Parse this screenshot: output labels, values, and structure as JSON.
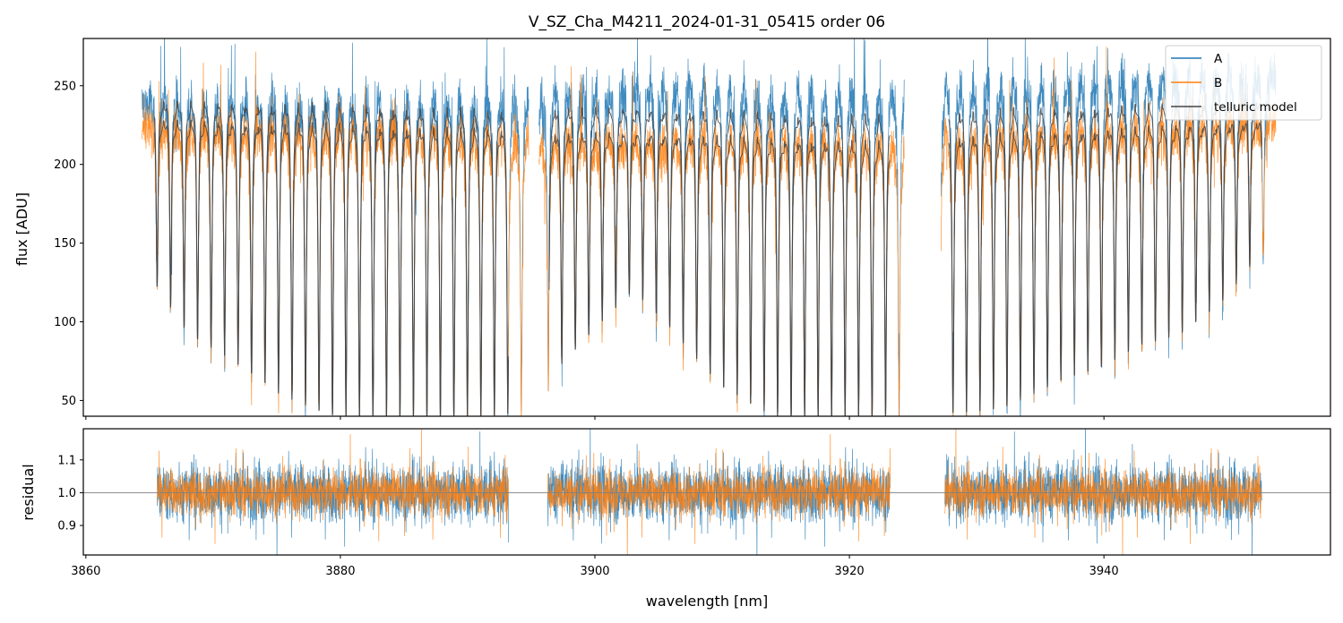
{
  "chart_data": {
    "type": "line",
    "title": "V_SZ_Cha_M4211_2024-01-31_05415  order 06",
    "xlabel": "wavelength [nm]",
    "xlim": [
      3859.8,
      3957.8
    ],
    "xticks": [
      3860,
      3880,
      3900,
      3920,
      3940
    ],
    "xtick_labels": [
      "3860",
      "3880",
      "3900",
      "3920",
      "3940"
    ],
    "legend": {
      "placement": "top-right",
      "entries": [
        {
          "label": "A",
          "color": "#1f77b4"
        },
        {
          "label": "B",
          "color": "#ff7f0e"
        },
        {
          "label": "telluric model",
          "color": "#444444"
        }
      ]
    },
    "top_panel": {
      "ylabel": "flux [ADU]",
      "ylim": [
        40,
        280
      ],
      "yticks": [
        50,
        100,
        150,
        200,
        250
      ],
      "ytick_labels": [
        "50",
        "100",
        "150",
        "200",
        "250"
      ],
      "series": [
        {
          "name": "A",
          "color": "#1f77b4",
          "segments": [
            [
              3864.4,
              3894.8
            ],
            [
              3895.6,
              3924.3
            ],
            [
              3927.2,
              3953.5
            ]
          ],
          "continuum": [
            [
              3864.4,
              238
            ],
            [
              3880,
              242
            ],
            [
              3893,
              240
            ],
            [
              3897,
              246
            ],
            [
              3910,
              250
            ],
            [
              3924,
              244
            ],
            [
              3928,
              250
            ],
            [
              3945,
              256
            ],
            [
              3953.5,
              256
            ]
          ],
          "noise": 22
        },
        {
          "name": "B",
          "color": "#ff7f0e",
          "segments": [
            [
              3864.4,
              3894.8
            ],
            [
              3895.6,
              3924.3
            ],
            [
              3927.2,
              3953.5
            ]
          ],
          "continuum": [
            [
              3864.4,
              222
            ],
            [
              3880,
              226
            ],
            [
              3893,
              222
            ],
            [
              3897,
              214
            ],
            [
              3910,
              218
            ],
            [
              3924,
              216
            ],
            [
              3928,
              218
            ],
            [
              3945,
              226
            ],
            [
              3953.5,
              228
            ]
          ],
          "noise": 20
        },
        {
          "name": "telluric model",
          "color": "#444444",
          "segments": [
            [
              3865.4,
              3893.2
            ],
            [
              3896.4,
              3923.2
            ],
            [
              3927.8,
              3952.4
            ]
          ],
          "line_centers": [
            3865.6,
            3893.6
          ],
          "line_count": 85,
          "continuum_upper": [
            [
              3865.4,
              244
            ],
            [
              3880,
              243
            ],
            [
              3893,
              238
            ],
            [
              3897,
              240
            ],
            [
              3910,
              238
            ],
            [
              3923,
              235
            ],
            [
              3928,
              238
            ],
            [
              3945,
              242
            ],
            [
              3952.4,
              243
            ]
          ],
          "continuum_lower": [
            [
              3865.4,
              232
            ],
            [
              3880,
              230
            ],
            [
              3893,
              226
            ],
            [
              3897,
              224
            ],
            [
              3910,
              222
            ],
            [
              3923,
              218
            ],
            [
              3928,
              222
            ],
            [
              3945,
              228
            ],
            [
              3952.4,
              230
            ]
          ],
          "depth_envelope": [
            [
              3865,
              130
            ],
            [
              3868,
              92
            ],
            [
              3871,
              78
            ],
            [
              3875,
              55
            ],
            [
              3879,
              40
            ],
            [
              3885,
              38
            ],
            [
              3893,
              40
            ],
            [
              3897,
              70
            ],
            [
              3903,
              120
            ],
            [
              3906,
              95
            ],
            [
              3910,
              58
            ],
            [
              3914,
              40
            ],
            [
              3920,
              38
            ],
            [
              3923,
              40
            ],
            [
              3928,
              42
            ],
            [
              3932,
              44
            ],
            [
              3936,
              60
            ],
            [
              3940,
              72
            ],
            [
              3943,
              85
            ],
            [
              3946,
              92
            ],
            [
              3949,
              110
            ],
            [
              3952,
              140
            ]
          ]
        }
      ]
    },
    "bottom_panel": {
      "ylabel": "residual",
      "ylim": [
        0.81,
        1.195
      ],
      "yticks": [
        0.9,
        1.0,
        1.1
      ],
      "ytick_labels": [
        "0.9",
        "1.0",
        "1.1"
      ],
      "reference_line": 1.0,
      "segments": [
        [
          3865.6,
          3893.2
        ],
        [
          3896.3,
          3923.2
        ],
        [
          3927.5,
          3952.4
        ]
      ],
      "series": [
        {
          "name": "A",
          "color": "#1f77b4",
          "center": 1.0,
          "noise": 0.065
        },
        {
          "name": "B",
          "color": "#ff7f0e",
          "center": 1.0,
          "noise": 0.05
        }
      ]
    }
  }
}
